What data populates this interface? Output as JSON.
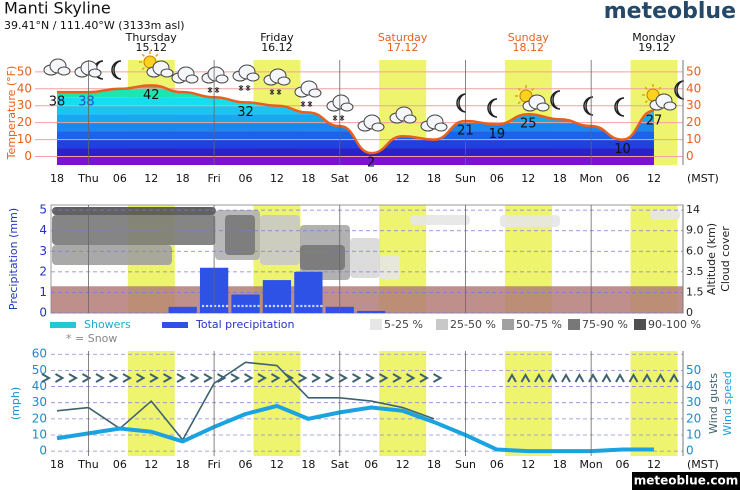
{
  "header": {
    "brand": "meteoblue",
    "footer": "meteoblue.com"
  },
  "chart_data": [
    {
      "type": "area",
      "title": "Manti Skyline",
      "subtitle": "39.41°N / 111.40°W (3133m asl)",
      "ylabel": "Temperature (°F)",
      "timezone": "(MST)",
      "days": [
        {
          "name": "Thursday",
          "date": "15.12",
          "weekend": false
        },
        {
          "name": "Friday",
          "date": "16.12",
          "weekend": false
        },
        {
          "name": "Saturday",
          "date": "17.12",
          "weekend": true
        },
        {
          "name": "Sunday",
          "date": "18.12",
          "weekend": true
        },
        {
          "name": "Monday",
          "date": "19.12",
          "weekend": false
        }
      ],
      "categories": [
        "18",
        "Thu",
        "06",
        "12",
        "18",
        "Fri",
        "06",
        "12",
        "18",
        "Sat",
        "06",
        "12",
        "18",
        "Sun",
        "06",
        "12",
        "18",
        "Mon",
        "06",
        "12"
      ],
      "values": [
        38,
        38,
        40,
        42,
        38,
        35,
        32,
        30,
        26,
        18,
        2,
        12,
        10,
        21,
        19,
        25,
        22,
        18,
        10,
        27
      ],
      "value_labels": [
        "38",
        "38",
        null,
        "42",
        null,
        null,
        "32",
        null,
        null,
        null,
        "2",
        null,
        null,
        "21",
        "19",
        "25",
        null,
        null,
        "10",
        "27"
      ],
      "color": "#e8601c",
      "ylim": [
        -5,
        57
      ],
      "yticks": [
        0,
        10,
        20,
        30,
        40,
        50
      ],
      "y2ticks": [
        0,
        10,
        20,
        30,
        40,
        50
      ],
      "grid": true
    },
    {
      "type": "bar",
      "ylabel": "Precipitation (mm)",
      "y2label": [
        "Altitude (km)",
        "Cloud cover"
      ],
      "ylim": [
        0,
        5.25
      ],
      "yticks": [
        0,
        1,
        2,
        3,
        4,
        5
      ],
      "y2ticks": [
        0,
        1.5,
        3.5,
        {
          "value": 6,
          "label": "6.0"
        },
        {
          "value": 9,
          "label": "9.0"
        },
        14
      ],
      "series": [
        {
          "name": "Showers",
          "color": "#22c7d8",
          "values": [
            0,
            0,
            0,
            0,
            0,
            0,
            0,
            0,
            0,
            0,
            0,
            0,
            0,
            0,
            0,
            0,
            0,
            0,
            0,
            0
          ]
        },
        {
          "name": "Total precipitation",
          "color": "#2f52e6",
          "values": [
            0,
            0,
            0,
            0,
            0.3,
            2.2,
            0.9,
            1.6,
            2.0,
            0.3,
            0.1,
            0,
            0,
            0,
            0,
            0,
            0,
            0,
            0,
            0
          ]
        }
      ],
      "snow_note": "* = Snow",
      "cloud_legend": [
        "5-25 %",
        "25-50 %",
        "50-75 %",
        "75-90 %",
        "90-100 %"
      ]
    },
    {
      "type": "line",
      "ylabel": "(mph)",
      "ylim": [
        -3,
        62
      ],
      "yticks": [
        0,
        10,
        20,
        30,
        40,
        50,
        60
      ],
      "y2lim": [
        -3,
        62
      ],
      "y2ticks": [
        0,
        10,
        20,
        30,
        40,
        50
      ],
      "series": [
        {
          "name": "Wind gusts",
          "color": "#3f6272",
          "values": [
            25,
            27,
            14,
            31,
            7,
            42,
            55,
            53,
            33,
            33,
            31,
            27,
            20,
            null,
            null,
            null,
            null,
            null,
            null,
            null
          ]
        },
        {
          "name": "Wind speed",
          "color": "#1aa3e0",
          "axis": "y2",
          "values": [
            8,
            11,
            14,
            12,
            6,
            15,
            23,
            28,
            20,
            24,
            27,
            25,
            18,
            10,
            1,
            0,
            0,
            0,
            1,
            1
          ]
        }
      ],
      "grid": true
    }
  ]
}
